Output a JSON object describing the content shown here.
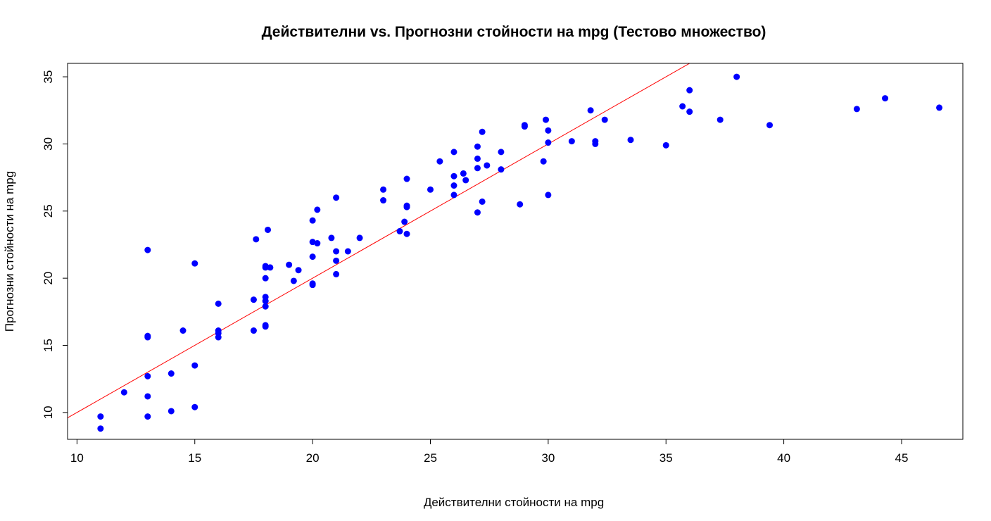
{
  "chart_data": {
    "type": "scatter",
    "title": "Действителни vs. Прогнозни стойности на mpg (Тестово множество)",
    "xlabel": "Действителни стойности на mpg",
    "ylabel": "Прогнозни стойности на mpg",
    "xlim": [
      9.6,
      47.6
    ],
    "ylim": [
      8.0,
      36.0
    ],
    "x_ticks": [
      10,
      15,
      20,
      25,
      30,
      35,
      40,
      45
    ],
    "y_ticks": [
      10,
      15,
      20,
      25,
      30,
      35
    ],
    "grid": false,
    "point_color": "#0000ff",
    "reference_line": {
      "color": "#ff0000",
      "slope": 1,
      "intercept": 0
    },
    "series": [
      {
        "points": [
          [
            11,
            9.7
          ],
          [
            11,
            8.8
          ],
          [
            12,
            11.5
          ],
          [
            13,
            22.1
          ],
          [
            13,
            15.7
          ],
          [
            13,
            15.6
          ],
          [
            13,
            12.7
          ],
          [
            13,
            11.2
          ],
          [
            13,
            9.7
          ],
          [
            14,
            12.9
          ],
          [
            14,
            10.1
          ],
          [
            14.5,
            16.1
          ],
          [
            15,
            21.1
          ],
          [
            15,
            13.5
          ],
          [
            15,
            10.4
          ],
          [
            16,
            18.1
          ],
          [
            16,
            16.1
          ],
          [
            16,
            15.9
          ],
          [
            16,
            15.6
          ],
          [
            17.5,
            18.4
          ],
          [
            17.5,
            16.1
          ],
          [
            17.6,
            22.9
          ],
          [
            18,
            20.9
          ],
          [
            18,
            20.8
          ],
          [
            18,
            20.0
          ],
          [
            18,
            18.6
          ],
          [
            18,
            18.3
          ],
          [
            18,
            17.9
          ],
          [
            18,
            16.5
          ],
          [
            18,
            16.4
          ],
          [
            18.1,
            23.6
          ],
          [
            18.2,
            20.8
          ],
          [
            19,
            21.0
          ],
          [
            19.2,
            19.8
          ],
          [
            19.4,
            20.6
          ],
          [
            20,
            24.3
          ],
          [
            20,
            22.7
          ],
          [
            20,
            21.6
          ],
          [
            20,
            19.6
          ],
          [
            20,
            19.5
          ],
          [
            20.2,
            25.1
          ],
          [
            20.2,
            22.6
          ],
          [
            20.8,
            23.0
          ],
          [
            21,
            26.0
          ],
          [
            21,
            22.0
          ],
          [
            21,
            21.3
          ],
          [
            21,
            20.3
          ],
          [
            21.5,
            22.0
          ],
          [
            22,
            23.0
          ],
          [
            23,
            26.6
          ],
          [
            23,
            25.8
          ],
          [
            23.7,
            23.5
          ],
          [
            23.9,
            24.2
          ],
          [
            24,
            27.4
          ],
          [
            24,
            25.4
          ],
          [
            24,
            25.3
          ],
          [
            24,
            23.3
          ],
          [
            25,
            26.6
          ],
          [
            25.4,
            28.7
          ],
          [
            26,
            29.4
          ],
          [
            26,
            27.6
          ],
          [
            26,
            26.9
          ],
          [
            26,
            26.2
          ],
          [
            26.4,
            27.8
          ],
          [
            26.5,
            27.3
          ],
          [
            27,
            29.8
          ],
          [
            27,
            28.9
          ],
          [
            27,
            28.2
          ],
          [
            27,
            24.9
          ],
          [
            27.2,
            30.9
          ],
          [
            27.2,
            25.7
          ],
          [
            27.4,
            28.4
          ],
          [
            28,
            29.4
          ],
          [
            28,
            28.1
          ],
          [
            28.8,
            25.5
          ],
          [
            29,
            31.4
          ],
          [
            29,
            31.3
          ],
          [
            29.8,
            28.7
          ],
          [
            29.9,
            31.8
          ],
          [
            30,
            31.0
          ],
          [
            30,
            30.1
          ],
          [
            30,
            26.2
          ],
          [
            31,
            30.2
          ],
          [
            31.8,
            32.5
          ],
          [
            32,
            30.2
          ],
          [
            32,
            30.0
          ],
          [
            32.4,
            31.8
          ],
          [
            33.5,
            30.3
          ],
          [
            35,
            29.9
          ],
          [
            35.7,
            32.8
          ],
          [
            36,
            34.0
          ],
          [
            36,
            32.4
          ],
          [
            37.3,
            31.8
          ],
          [
            38,
            35.0
          ],
          [
            39.4,
            31.4
          ],
          [
            43.1,
            32.6
          ],
          [
            44.3,
            33.4
          ],
          [
            46.6,
            32.7
          ]
        ]
      }
    ]
  }
}
